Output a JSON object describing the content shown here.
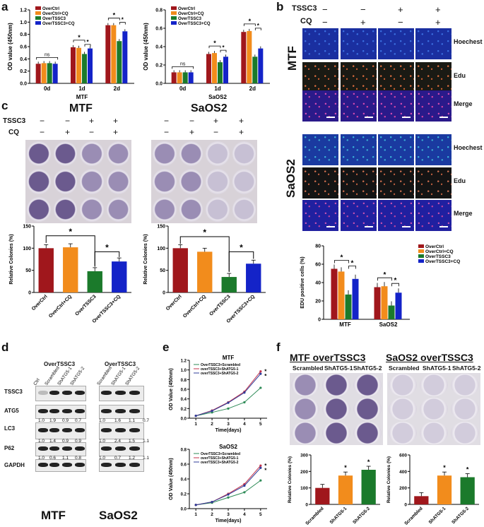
{
  "panel_labels": {
    "a": "a",
    "b": "b",
    "c": "c",
    "d": "d",
    "e": "e",
    "f": "f"
  },
  "colors": {
    "overctrl": "#a0171c",
    "overctrl_cq": "#f28c1c",
    "overtssc3": "#1b7a2b",
    "overtssc3_cq": "#1423c8",
    "shatg5_scrambled": "#a0171c",
    "shatg5_1": "#f28c1c",
    "shatg5_2": "#1b7a2b",
    "line_scrambled": "#2e8b57",
    "line_sh1": "#c0304a",
    "line_sh2": "#2f3c9a"
  },
  "legend_a": [
    "OverCtrl",
    "OverCtrl+CQ",
    "OverTSSC3",
    "OverTSSC3+CQ"
  ],
  "legend_b": [
    "OverCtrl",
    "OverCtrl+CQ",
    "OverTSSC3",
    "OverTSSC3+CQ"
  ],
  "sig": {
    "star": "*",
    "ns": "ns"
  },
  "panel_b": {
    "header_tssc3": "TSSC3",
    "header_cq": "CQ",
    "tssc3_signs": [
      "−",
      "−",
      "+",
      "+"
    ],
    "cq_signs": [
      "−",
      "+",
      "−",
      "+"
    ],
    "group_mtf": "MTF",
    "group_saos2": "SaOS2",
    "rows": [
      "Hoechest",
      "Edu",
      "Merge",
      "Hoechest",
      "Edu",
      "Merge"
    ]
  },
  "panel_c": {
    "mtf_title": "MTF",
    "saos2_title": "SaOS2",
    "row_tssc3": "TSSC3",
    "row_cq": "CQ",
    "tssc3_signs": [
      "−",
      "−",
      "+",
      "+"
    ],
    "cq_signs": [
      "−",
      "+",
      "−",
      "+"
    ]
  },
  "panel_d": {
    "header_left": "OverTSSC3",
    "header_right": "OverTSSC3",
    "lanes_left": [
      "Ctrl",
      "Scrambled",
      "ShATG5-1",
      "ShATG5-2"
    ],
    "lanes_right": [
      "Scrambled",
      "ShATG5-1",
      "ShATG5-2"
    ],
    "proteins": [
      "TSSC3",
      "ATG5",
      "LC3",
      "P62",
      "GAPDH"
    ],
    "values_atg5_left": [
      "1.0",
      "1.9",
      "0.9",
      "0.7"
    ],
    "values_atg5_right": [
      "1.0",
      "1.6",
      "1.1",
      "0.7"
    ],
    "values_lc3_left": [
      "1.0",
      "1.4",
      "0.9",
      "0.9"
    ],
    "values_lc3_right": [
      "1.0",
      "2.4",
      "1.5",
      "1.1"
    ],
    "values_p62_left": [
      "1.0",
      "0.6",
      "1.1",
      "0.8"
    ],
    "values_p62_right": [
      "1.0",
      "0.7",
      "1.2",
      "1.1"
    ],
    "label_mtf": "MTF",
    "label_saos2": "SaOS2"
  },
  "panel_f": {
    "title_mtf": "MTF overTSSC3",
    "title_saos2": "SaOS2 overTSSC3",
    "cols": [
      "Scrambled",
      "ShATG5-1",
      "ShATG5-2"
    ]
  },
  "chart_data": [
    {
      "id": "a-mtf",
      "type": "bar",
      "title": "",
      "xlabel": "MTF",
      "ylabel": "OD value (450nm)",
      "categories": [
        "0d",
        "1d",
        "2d"
      ],
      "ylim": [
        0,
        1.2
      ],
      "yticks": [
        "0.0",
        "0.2",
        "0.4",
        "0.6",
        "0.8",
        "1.0",
        "1.2"
      ],
      "series": [
        {
          "name": "OverCtrl",
          "values": [
            0.32,
            0.59,
            0.95
          ]
        },
        {
          "name": "OverCtrl+CQ",
          "values": [
            0.33,
            0.58,
            0.95
          ]
        },
        {
          "name": "OverTSSC3",
          "values": [
            0.33,
            0.48,
            0.69
          ]
        },
        {
          "name": "OverTSSC3+CQ",
          "values": [
            0.32,
            0.57,
            0.85
          ]
        }
      ]
    },
    {
      "id": "a-saos2",
      "type": "bar",
      "title": "",
      "xlabel": "SaOS2",
      "ylabel": "OD value (450nm)",
      "categories": [
        "0d",
        "1d",
        "2d"
      ],
      "ylim": [
        0,
        0.8
      ],
      "yticks": [
        "0.0",
        "0.2",
        "0.4",
        "0.6",
        "0.8"
      ],
      "series": [
        {
          "name": "OverCtrl",
          "values": [
            0.12,
            0.32,
            0.56
          ]
        },
        {
          "name": "OverCtrl+CQ",
          "values": [
            0.12,
            0.33,
            0.57
          ]
        },
        {
          "name": "OverTSSC3",
          "values": [
            0.12,
            0.23,
            0.29
          ]
        },
        {
          "name": "OverTSSC3+CQ",
          "values": [
            0.12,
            0.29,
            0.38
          ]
        }
      ]
    },
    {
      "id": "b-edu",
      "type": "bar",
      "title": "",
      "xlabel": "",
      "ylabel": "EDU positive cells (%)",
      "categories": [
        "MTF",
        "SaOS2"
      ],
      "ylim": [
        0,
        80
      ],
      "yticks": [
        "0",
        "20",
        "40",
        "60",
        "80"
      ],
      "series": [
        {
          "name": "OverCtrl",
          "values": [
            55,
            35
          ]
        },
        {
          "name": "OverCtrl+CQ",
          "values": [
            52,
            36
          ]
        },
        {
          "name": "OverTSSC3",
          "values": [
            27,
            15
          ]
        },
        {
          "name": "OverTSSC3+CQ",
          "values": [
            44,
            29
          ]
        }
      ]
    },
    {
      "id": "c-mtf",
      "type": "bar",
      "title": "",
      "xlabel": "",
      "ylabel": "Relative Colonies (%)",
      "categories": [
        "OverCtrl",
        "OverCtrl+CQ",
        "OverTSSC3",
        "OverTSSC3+CQ"
      ],
      "ylim": [
        0,
        150
      ],
      "yticks": [
        "0",
        "50",
        "100",
        "150"
      ],
      "values": [
        100,
        102,
        48,
        70
      ]
    },
    {
      "id": "c-saos2",
      "type": "bar",
      "title": "",
      "xlabel": "",
      "ylabel": "Relative Colonies (%)",
      "categories": [
        "OverCtrl",
        "OverCtrl+CQ",
        "OverTSSC3",
        "OverTSSC3+CQ"
      ],
      "ylim": [
        0,
        150
      ],
      "yticks": [
        "0",
        "50",
        "100",
        "150"
      ],
      "values": [
        100,
        92,
        35,
        65
      ]
    },
    {
      "id": "e-mtf",
      "type": "line",
      "title": "MTF",
      "xlabel": "Time(days)",
      "ylabel": "OD Value (450nm)",
      "x": [
        1,
        2,
        3,
        4,
        5
      ],
      "xticks": [
        "1",
        "2",
        "3",
        "4",
        "5"
      ],
      "ylim": [
        0,
        1.2
      ],
      "yticks": [
        "0.0",
        "0.2",
        "0.4",
        "0.6",
        "0.8",
        "1.0",
        "1.2"
      ],
      "series": [
        {
          "name": "OverTSSC3+Scrambled",
          "values": [
            0.05,
            0.12,
            0.2,
            0.33,
            0.63
          ]
        },
        {
          "name": "overTSSC3+ShATG5-1",
          "values": [
            0.05,
            0.16,
            0.33,
            0.55,
            0.97
          ]
        },
        {
          "name": "overTSSC3+ShATG5-2",
          "values": [
            0.05,
            0.15,
            0.32,
            0.53,
            0.92
          ]
        }
      ]
    },
    {
      "id": "e-saos2",
      "type": "line",
      "title": "SaOS2",
      "xlabel": "Time(days)",
      "ylabel": "OD Value (450nm)",
      "x": [
        1,
        2,
        3,
        4,
        5
      ],
      "xticks": [
        "1",
        "2",
        "3",
        "4",
        "5"
      ],
      "ylim": [
        0,
        0.8
      ],
      "yticks": [
        "0.0",
        "0.2",
        "0.4",
        "0.6",
        "0.8"
      ],
      "series": [
        {
          "name": "OverTSSC3+Scrambled",
          "values": [
            0.05,
            0.08,
            0.15,
            0.22,
            0.38
          ]
        },
        {
          "name": "overTSSC3+ShATG5-1",
          "values": [
            0.05,
            0.09,
            0.2,
            0.33,
            0.58
          ]
        },
        {
          "name": "overTSSC3+ShATG5-2",
          "values": [
            0.05,
            0.09,
            0.19,
            0.31,
            0.55
          ]
        }
      ]
    },
    {
      "id": "f-mtf",
      "type": "bar",
      "title": "",
      "xlabel": "",
      "ylabel": "Relative Colonies (%)",
      "categories": [
        "Scrambled",
        "ShATG5-1",
        "ShATG5-2"
      ],
      "ylim": [
        0,
        300
      ],
      "yticks": [
        "0",
        "100",
        "200",
        "300"
      ],
      "values": [
        100,
        175,
        210
      ]
    },
    {
      "id": "f-saos2",
      "type": "bar",
      "title": "",
      "xlabel": "",
      "ylabel": "Relative Colonies (%)",
      "categories": [
        "Scrambled",
        "ShATG5-1",
        "ShATG5-2"
      ],
      "ylim": [
        0,
        600
      ],
      "yticks": [
        "0",
        "200",
        "400",
        "600"
      ],
      "values": [
        100,
        350,
        330
      ]
    }
  ]
}
